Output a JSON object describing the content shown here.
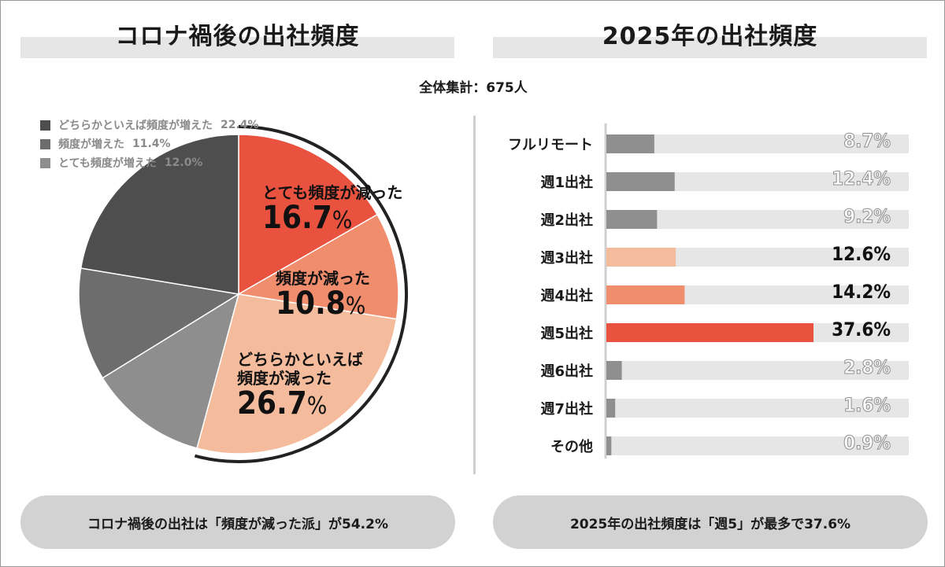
{
  "left_title": "コロナ禍後の出社頻度",
  "right_title": "2025年の出社頻度",
  "total": "全体集計：675人",
  "left_summary": "コロナ禍後の出社は「頻度が減った派」が54.2%",
  "right_summary": "2025年の出社頻度は「週5」が最多で37.6%",
  "chart_data": [
    {
      "type": "pie",
      "title": "コロナ禍後の出社頻度",
      "slices": [
        {
          "label": "とても頻度が減った",
          "value": 16.7,
          "display": "16.7",
          "color": "#e8523f",
          "callout": true
        },
        {
          "label": "頻度が減った",
          "value": 10.8,
          "display": "10.8",
          "color": "#ef8d6d",
          "callout": true
        },
        {
          "label": "どちらかといえば頻度が減った",
          "label_lines": [
            "どちらかといえば",
            "頻度が減った"
          ],
          "value": 26.7,
          "display": "26.7",
          "color": "#f4bc9c",
          "callout": true
        },
        {
          "label": "とても頻度が増えた",
          "value": 12.0,
          "display": "12.0%",
          "color": "#8e8e8e",
          "callout": false
        },
        {
          "label": "頻度が増えた",
          "value": 11.4,
          "display": "11.4%",
          "color": "#6d6d6d",
          "callout": false
        },
        {
          "label": "どちらかといえば頻度が増えた",
          "value": 22.4,
          "display": "22.4%",
          "color": "#4e4e4e",
          "callout": false
        }
      ],
      "legend_order": [
        "どちらかといえば頻度が増えた",
        "頻度が増えた",
        "とても頻度が増えた"
      ],
      "unit": "%"
    },
    {
      "type": "bar",
      "orientation": "horizontal",
      "title": "2025年の出社頻度",
      "categories": [
        "フルリモート",
        "週1出社",
        "週2出社",
        "週3出社",
        "週4出社",
        "週5出社",
        "週6出社",
        "週7出社",
        "その他"
      ],
      "values": [
        8.7,
        12.4,
        9.2,
        12.6,
        14.2,
        37.6,
        2.8,
        1.6,
        0.9
      ],
      "value_labels": [
        "8.7%",
        "12.4%",
        "9.2%",
        "12.6%",
        "14.2%",
        "37.6%",
        "2.8%",
        "1.6%",
        "0.9%"
      ],
      "colors": [
        "#8f8f8f",
        "#8f8f8f",
        "#8f8f8f",
        "#f4bc9c",
        "#ef8d6d",
        "#e8523f",
        "#8f8f8f",
        "#8f8f8f",
        "#8f8f8f"
      ],
      "highlight": [
        false,
        false,
        false,
        true,
        true,
        true,
        false,
        false,
        false
      ],
      "track_color": "#e6e6e6",
      "xlim": [
        0,
        100
      ]
    }
  ]
}
